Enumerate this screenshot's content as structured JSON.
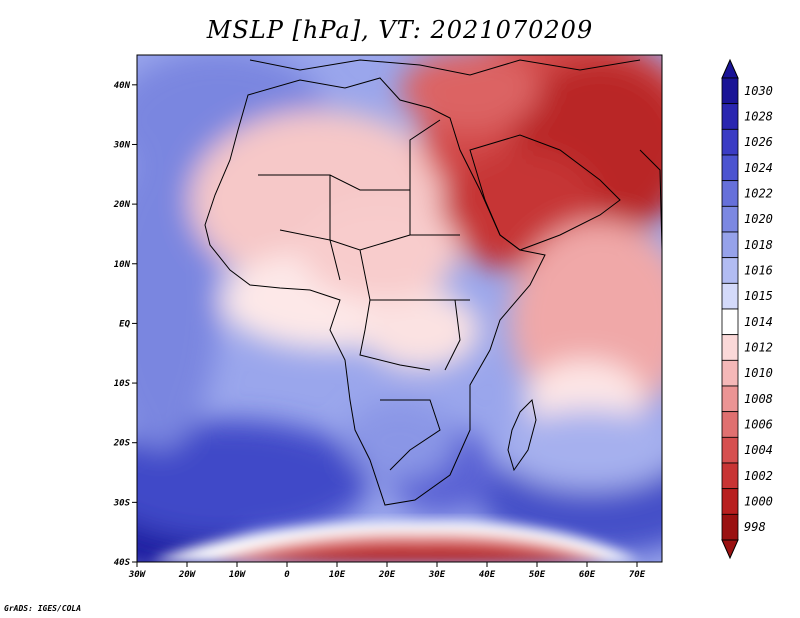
{
  "title": "MSLP [hPa], VT: 2021070209",
  "credit": "GrADS: IGES/COLA",
  "map": {
    "lon_labels": [
      "30W",
      "20W",
      "10W",
      "0",
      "10E",
      "20E",
      "30E",
      "40E",
      "50E",
      "60E",
      "70E"
    ],
    "lat_labels": [
      "40N",
      "30N",
      "20N",
      "10N",
      "EQ",
      "10S",
      "20S",
      "30S",
      "40S"
    ],
    "lon_range": [
      -30,
      75
    ],
    "lat_range": [
      -40,
      45
    ]
  },
  "colorbar": {
    "levels": [
      "1030",
      "1028",
      "1026",
      "1024",
      "1022",
      "1020",
      "1018",
      "1016",
      "1015",
      "1014",
      "1012",
      "1010",
      "1008",
      "1006",
      "1004",
      "1002",
      "1000",
      "998"
    ],
    "colors": [
      "#1a1496",
      "#2a26b0",
      "#3b3cc4",
      "#4c54d0",
      "#6670da",
      "#7c88e2",
      "#96a2ea",
      "#b2bcf2",
      "#d4dafa",
      "#ffffff",
      "#fbd8d8",
      "#f5b8b8",
      "#eb9494",
      "#e07070",
      "#d64f4f",
      "#c83434",
      "#b81f1f",
      "#9a1111"
    ]
  }
}
